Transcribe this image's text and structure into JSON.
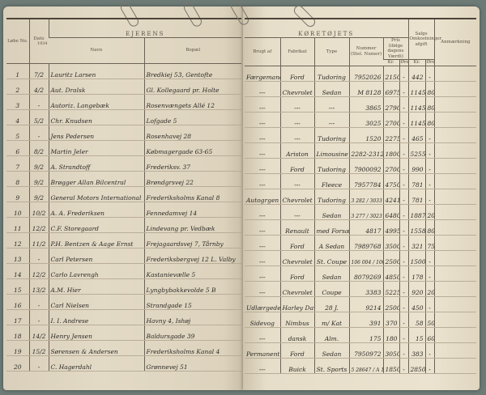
{
  "left_page": {
    "headers": {
      "lobe_no": "Løbe No.",
      "dato": "Dato",
      "year": "1934",
      "group": "EJERENS",
      "navn": "Navn",
      "bopael": "Bopæl"
    },
    "rows": [
      {
        "no": "1",
        "date": "7/2",
        "name": "Lauritz Larsen",
        "address": "Bredkiej 53, Gentofte"
      },
      {
        "no": "2",
        "date": "4/2",
        "name": "Aut. Dralsk",
        "address": "Gl. Kollegaard pr. Holte"
      },
      {
        "no": "3",
        "date": "-",
        "name": "Autoriz. Langebæk",
        "address": "Rosenvængets Allé 12"
      },
      {
        "no": "4",
        "date": "5/2",
        "name": "Chr. Knudsen",
        "address": "Lofgade 5"
      },
      {
        "no": "5",
        "date": "-",
        "name": "Jens Pedersen",
        "address": "Rosenhavej 28"
      },
      {
        "no": "6",
        "date": "8/2",
        "name": "Martin Jeler",
        "address": "Købmagergade 63-65"
      },
      {
        "no": "7",
        "date": "9/2",
        "name": "A. Strandtoff",
        "address": "Frederiksv. 37"
      },
      {
        "no": "8",
        "date": "9/2",
        "name": "Brøgger Allan Bilcentral",
        "address": "Brøndgrsvej 22"
      },
      {
        "no": "9",
        "date": "9/2",
        "name": "General Motors International",
        "address": "Frederiksholms Kanal 8"
      },
      {
        "no": "10",
        "date": "10/2",
        "name": "A. A. Frederiksen",
        "address": "Fennedamvej 14"
      },
      {
        "no": "11",
        "date": "12/2",
        "name": "C.F. Storegaard",
        "address": "Lindevang pr. Vedbæk"
      },
      {
        "no": "12",
        "date": "11/2",
        "name": "P.H. Bentzen & Aage Ernst",
        "address": "Frejagaardsvej 7, Tårnby"
      },
      {
        "no": "13",
        "date": "-",
        "name": "Carl Petersen",
        "address": "Frederiksbergvej 12 L. Valby"
      },
      {
        "no": "14",
        "date": "12/2",
        "name": "Carlo Lavrengh",
        "address": "Kastanievælle 5"
      },
      {
        "no": "15",
        "date": "13/2",
        "name": "A.M. Hier",
        "address": "Lyngbybakkevolde 5 B"
      },
      {
        "no": "16",
        "date": "-",
        "name": "Carl Nielsen",
        "address": "Strandgade 15"
      },
      {
        "no": "17",
        "date": "-",
        "name": "I. I. Andrese",
        "address": "Havny 4, Ishøj"
      },
      {
        "no": "18",
        "date": "14/2",
        "name": "Henry Jensen",
        "address": "Baldursgade 39"
      },
      {
        "no": "19",
        "date": "15/2",
        "name": "Sørensen & Andersen",
        "address": "Frederiksholms Kanal 4"
      },
      {
        "no": "20",
        "date": "-",
        "name": "C. Hagerdahl",
        "address": "Grønnevej 51"
      }
    ]
  },
  "right_page": {
    "headers": {
      "group": "KØRETØJETS",
      "brugt_af": "Brugt af",
      "fabrikat": "Fabrikat",
      "type": "Type",
      "nummer": "Nummer (Stel. Numer)",
      "pris": "Pris (ifølge dagens Værdi)",
      "salgs": "Salgs Omkostninger afgift",
      "anmaerkning": "Anmærkning",
      "kr": "Kr.",
      "ore": "Øre"
    },
    "rows": [
      {
        "used": "Færgemand",
        "make": "Ford",
        "type": "Tudoring",
        "number": "7952026",
        "price": "2150",
        "price_ore": "-",
        "fee": "442",
        "fee_ore": "-"
      },
      {
        "used": "---",
        "make": "Chevrolet",
        "type": "Sedan",
        "number": "M 8128",
        "price": "6975",
        "price_ore": "-",
        "fee": "1145",
        "fee_ore": "80"
      },
      {
        "used": "---",
        "make": "---",
        "type": "---",
        "number": "3865",
        "price": "2790",
        "price_ore": "-",
        "fee": "1145",
        "fee_ore": "80"
      },
      {
        "used": "---",
        "make": "---",
        "type": "---",
        "number": "3025",
        "price": "2700",
        "price_ore": "-",
        "fee": "1145",
        "fee_ore": "80"
      },
      {
        "used": "---",
        "make": "---",
        "type": "Tudoring",
        "number": "1520",
        "price": "2275",
        "price_ore": "-",
        "fee": "465",
        "fee_ore": "-"
      },
      {
        "used": "---",
        "make": "Ariston",
        "type": "Limousine",
        "number": "2282-2312",
        "price": "1800",
        "price_ore": "-",
        "fee": "5255",
        "fee_ore": "-"
      },
      {
        "used": "---",
        "make": "Ford",
        "type": "Tudoring",
        "number": "7900092",
        "price": "2700",
        "price_ore": "-",
        "fee": "990",
        "fee_ore": "-"
      },
      {
        "used": "---",
        "make": "---",
        "type": "Fleece",
        "number": "7957784",
        "price": "4750",
        "price_ore": "-",
        "fee": "781",
        "fee_ore": "-"
      },
      {
        "used": "Autogrgen",
        "make": "Chevrolet",
        "type": "Tudoring",
        "number": "3 282 / 3033",
        "price": "4241",
        "price_ore": "-",
        "fee": "781",
        "fee_ore": "-"
      },
      {
        "used": "---",
        "make": "---",
        "type": "Sedan",
        "number": "3 277 / 3023",
        "price": "6480",
        "price_ore": "-",
        "fee": "1887",
        "fee_ore": "20"
      },
      {
        "used": "---",
        "make": "Renault",
        "type": "med Forsæt",
        "number": "4817",
        "price": "4995",
        "price_ore": "-",
        "fee": "1558",
        "fee_ore": "80"
      },
      {
        "used": "---",
        "make": "Ford",
        "type": "A Sedan",
        "number": "7989768",
        "price": "3500",
        "price_ore": "-",
        "fee": "321",
        "fee_ore": "75"
      },
      {
        "used": "---",
        "make": "Chevrolet",
        "type": "St. Coupe",
        "number": "106 004 / 1007725",
        "price": "2500",
        "price_ore": "-",
        "fee": "1500",
        "fee_ore": "-"
      },
      {
        "used": "---",
        "make": "Ford",
        "type": "Sedan",
        "number": "8079269",
        "price": "4850",
        "price_ore": "-",
        "fee": "178",
        "fee_ore": "-"
      },
      {
        "used": "---",
        "make": "Chevrolet",
        "type": "Coupe",
        "number": "3383",
        "price": "5225",
        "price_ore": "-",
        "fee": "920",
        "fee_ore": "20"
      },
      {
        "used": "Udlærgede",
        "make": "Harley Davidson",
        "type": "28 J.",
        "number": "9214",
        "price": "2500",
        "price_ore": "-",
        "fee": "450",
        "fee_ore": "-"
      },
      {
        "used": "Sidevog",
        "make": "Nimbus",
        "type": "m/ Kat",
        "number": "391",
        "price": "370",
        "price_ore": "-",
        "fee": "58",
        "fee_ore": "50"
      },
      {
        "used": "---",
        "make": "dansk",
        "type": "Alm.",
        "number": "175",
        "price": "180",
        "price_ore": "-",
        "fee": "15",
        "fee_ore": "60"
      },
      {
        "used": "Permanent",
        "make": "Ford",
        "type": "Sedan",
        "number": "7950972",
        "price": "3050",
        "price_ore": "-",
        "fee": "383",
        "fee_ore": "-"
      },
      {
        "used": "---",
        "make": "Buick",
        "type": "St. Sports",
        "number": "5 28647 / A 10753",
        "price": "1850",
        "price_ore": "-",
        "fee": "2850",
        "fee_ore": "-"
      }
    ]
  },
  "colors": {
    "background": "#6d7a76",
    "paper": "#e6dec9",
    "ink": "#2d2a26"
  }
}
